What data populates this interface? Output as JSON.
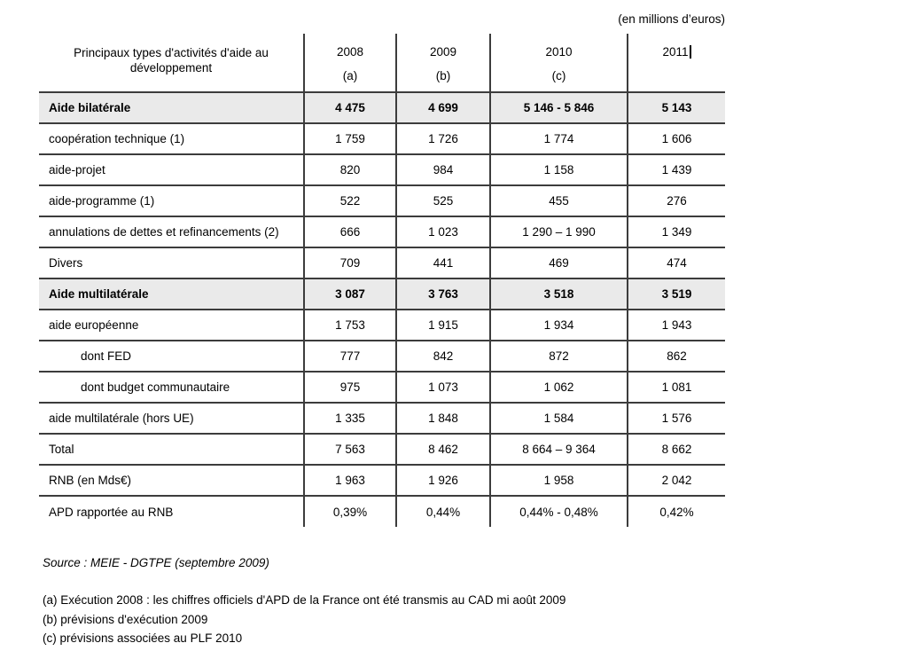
{
  "unit_label": "(en millions d’euros)",
  "colors": {
    "border": "#3c3c3c",
    "shaded_row_bg": "#eaeaea",
    "text": "#000000"
  },
  "table": {
    "header": {
      "label": "Principaux types d'activités d'aide au développement",
      "columns": [
        {
          "year": "2008",
          "note": "(a)"
        },
        {
          "year": "2009",
          "note": "(b)"
        },
        {
          "year": "2010",
          "note": "(c)"
        },
        {
          "year": "2011",
          "note": "",
          "has_text_cursor": true
        }
      ]
    },
    "rows": [
      {
        "label": "Aide bilatérale",
        "values": [
          "4 475",
          "4 699",
          "5 146 - 5 846",
          "5 143"
        ],
        "bold": true,
        "shaded": true,
        "indent": false
      },
      {
        "label": "coopération technique (1)",
        "values": [
          "1 759",
          "1 726",
          "1 774",
          "1 606"
        ],
        "bold": false,
        "shaded": false,
        "indent": false
      },
      {
        "label": "aide-projet",
        "values": [
          "820",
          "984",
          "1 158",
          "1 439"
        ],
        "bold": false,
        "shaded": false,
        "indent": false
      },
      {
        "label": "aide-programme (1)",
        "values": [
          "522",
          "525",
          "455",
          "276"
        ],
        "bold": false,
        "shaded": false,
        "indent": false
      },
      {
        "label": "annulations de dettes et refinancements (2)",
        "values": [
          "666",
          "1 023",
          "1 290 – 1 990",
          "1 349"
        ],
        "bold": false,
        "shaded": false,
        "indent": false
      },
      {
        "label": "Divers",
        "values": [
          "709",
          "441",
          "469",
          "474"
        ],
        "bold": false,
        "shaded": false,
        "indent": false
      },
      {
        "label": "Aide multilatérale",
        "values": [
          "3 087",
          "3 763",
          "3 518",
          "3 519"
        ],
        "bold": true,
        "shaded": true,
        "indent": false
      },
      {
        "label": "aide européenne",
        "values": [
          "1 753",
          "1 915",
          "1 934",
          "1 943"
        ],
        "bold": false,
        "shaded": false,
        "indent": false
      },
      {
        "label": "dont FED",
        "values": [
          "777",
          "842",
          "872",
          "862"
        ],
        "bold": false,
        "shaded": false,
        "indent": true
      },
      {
        "label": "dont budget communautaire",
        "values": [
          "975",
          "1 073",
          "1 062",
          "1 081"
        ],
        "bold": false,
        "shaded": false,
        "indent": true
      },
      {
        "label": "aide multilatérale (hors UE)",
        "values": [
          "1 335",
          "1 848",
          "1 584",
          "1 576"
        ],
        "bold": false,
        "shaded": false,
        "indent": false
      },
      {
        "label": "Total",
        "values": [
          "7 563",
          "8 462",
          "8 664 – 9 364",
          "8 662"
        ],
        "bold": false,
        "shaded": false,
        "indent": false
      },
      {
        "label": "RNB (en Mds€)",
        "values": [
          "1 963",
          "1 926",
          "1 958",
          "2 042"
        ],
        "bold": false,
        "shaded": false,
        "indent": false
      },
      {
        "label": "APD rapportée au RNB",
        "values": [
          "0,39%",
          "0,44%",
          "0,44% - 0,48%",
          "0,42%"
        ],
        "bold": false,
        "shaded": false,
        "indent": false
      }
    ]
  },
  "source_line": "Source : MEIE - DGTPE (septembre 2009)",
  "footnotes": [
    "(a) Exécution 2008 : les chiffres officiels d'APD de la France ont été transmis au CAD mi août 2009",
    "(b) prévisions d'exécution 2009",
    "(c) prévisions associées au PLF 2010"
  ]
}
